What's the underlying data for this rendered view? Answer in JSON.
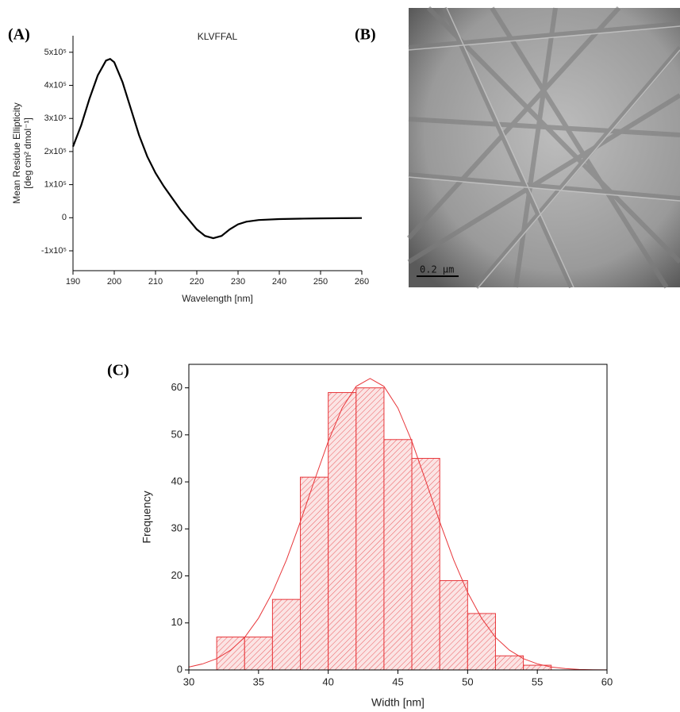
{
  "chart_data": [
    {
      "type": "line",
      "label": "(A)",
      "title": "KLVFFAL",
      "xlabel": "Wavelength [nm]",
      "ylabel": [
        "Mean Residue Ellipticity",
        "[deg cm² dmol⁻¹]"
      ],
      "xlim": [
        190,
        260
      ],
      "xticks": [
        190,
        200,
        210,
        220,
        230,
        240,
        250,
        260
      ],
      "ylim": [
        -160000,
        550000
      ],
      "yticks": [
        {
          "value": -100000,
          "label": "-1x10⁵"
        },
        0,
        {
          "value": 100000,
          "label": "1x10⁵"
        },
        {
          "value": 200000,
          "label": "2x10⁵"
        },
        {
          "value": 300000,
          "label": "3x10⁵"
        },
        {
          "value": 400000,
          "label": "4x10⁵"
        },
        {
          "value": 500000,
          "label": "5x10⁵"
        }
      ],
      "x": [
        190,
        192,
        194,
        196,
        198,
        199,
        200,
        202,
        204,
        206,
        208,
        210,
        212,
        214,
        216,
        218,
        220,
        222,
        224,
        226,
        228,
        230,
        232,
        235,
        240,
        245,
        250,
        255,
        260
      ],
      "series": [
        {
          "name": "KLVFFAL",
          "color": "#000000",
          "values": [
            215000,
            280000,
            360000,
            430000,
            475000,
            480000,
            470000,
            410000,
            330000,
            250000,
            185000,
            135000,
            95000,
            60000,
            25000,
            -5000,
            -35000,
            -55000,
            -62000,
            -55000,
            -35000,
            -20000,
            -12000,
            -7000,
            -4000,
            -3000,
            -2000,
            -1500,
            -1000
          ]
        }
      ]
    },
    {
      "type": "image",
      "label": "(B)",
      "scale_bar": "0.2 μm"
    },
    {
      "type": "histogram",
      "label": "(C)",
      "xlabel": "Width [nm]",
      "ylabel": "Frequency",
      "xlim": [
        30,
        60
      ],
      "xticks": [
        30,
        35,
        40,
        45,
        50,
        55,
        60
      ],
      "ylim": [
        0,
        65
      ],
      "yticks": [
        0,
        10,
        20,
        30,
        40,
        50,
        60
      ],
      "color": "#e8373b",
      "bins": [
        32,
        34,
        36,
        38,
        40,
        42,
        44,
        46,
        48,
        50,
        52,
        54,
        56
      ],
      "values": [
        7,
        7,
        15,
        41,
        59,
        60,
        49,
        45,
        19,
        12,
        3,
        1
      ],
      "fit": {
        "x": [
          30,
          31,
          32,
          33,
          34,
          35,
          36,
          37,
          38,
          39,
          40,
          41,
          42,
          43,
          44,
          45,
          46,
          47,
          48,
          49,
          50,
          51,
          52,
          53,
          54,
          55,
          56,
          57,
          58,
          59,
          60
        ],
        "values": [
          0.6,
          1.3,
          2.4,
          4.2,
          6.9,
          11.0,
          16.5,
          23.4,
          31.5,
          40.2,
          48.6,
          55.7,
          60.3,
          62,
          60.3,
          55.7,
          48.6,
          40.2,
          31.5,
          23.4,
          16.5,
          11.0,
          6.9,
          4.2,
          2.4,
          1.3,
          0.6,
          0.3,
          0.1,
          0.05,
          0.02
        ]
      }
    }
  ]
}
